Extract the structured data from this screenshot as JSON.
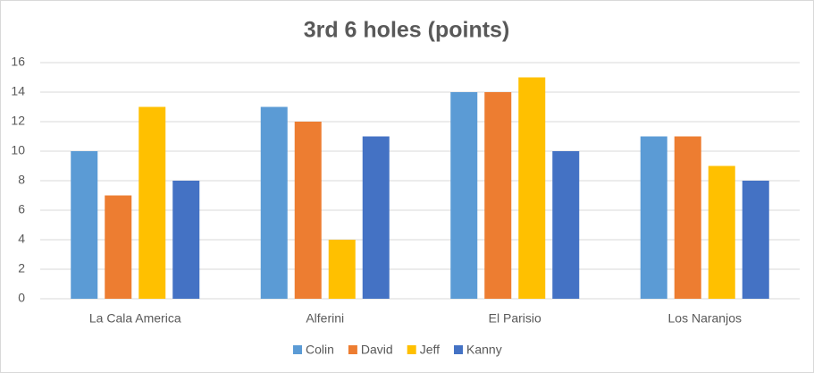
{
  "chart_data": {
    "type": "bar",
    "title": "3rd 6 holes (points)",
    "categories": [
      "La Cala America",
      "Alferini",
      "El Parisio",
      "Los Naranjos"
    ],
    "series": [
      {
        "name": "Colin",
        "color": "#5b9bd5",
        "values": [
          10,
          13,
          14,
          11
        ]
      },
      {
        "name": "David",
        "color": "#ed7d31",
        "values": [
          7,
          12,
          14,
          11
        ]
      },
      {
        "name": "Jeff",
        "color": "#ffc000",
        "values": [
          13,
          4,
          15,
          9
        ]
      },
      {
        "name": "Kanny",
        "color": "#4472c4",
        "values": [
          8,
          11,
          10,
          8
        ]
      }
    ],
    "ylim": [
      0,
      16
    ],
    "yticks": [
      0,
      2,
      4,
      6,
      8,
      10,
      12,
      14,
      16
    ],
    "grid": true,
    "legend": "bottom"
  }
}
